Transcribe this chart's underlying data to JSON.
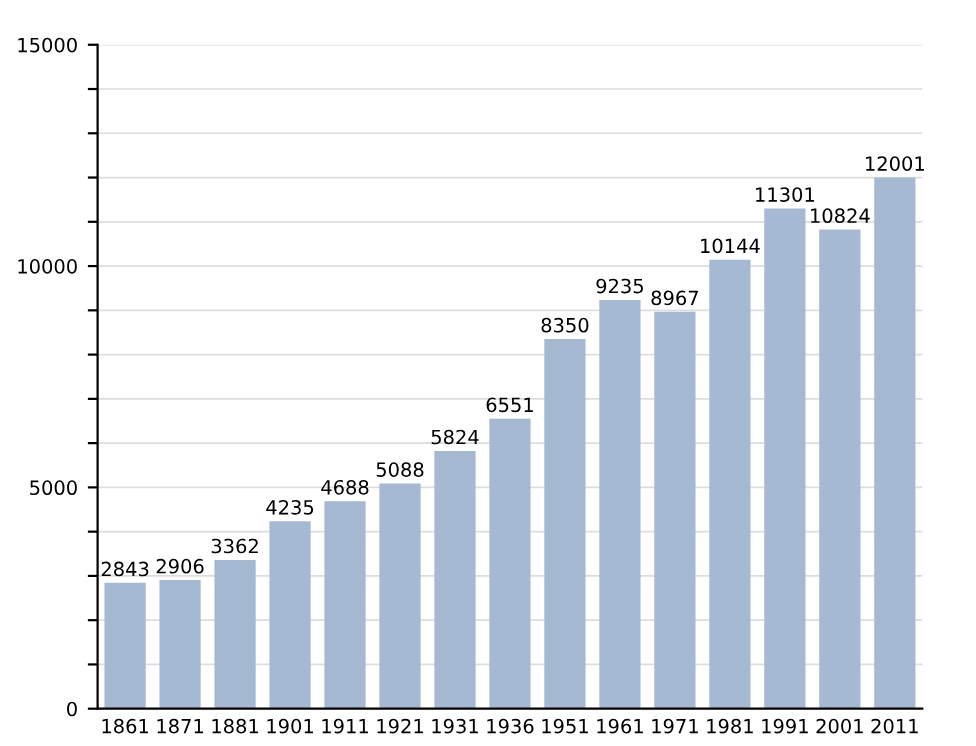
{
  "chart_data": {
    "type": "bar",
    "categories": [
      "1861",
      "1871",
      "1881",
      "1901",
      "1911",
      "1921",
      "1931",
      "1936",
      "1951",
      "1961",
      "1971",
      "1981",
      "1991",
      "2001",
      "2011"
    ],
    "values": [
      2843,
      2906,
      3362,
      4235,
      4688,
      5088,
      5824,
      6551,
      8350,
      9235,
      8967,
      10144,
      11301,
      10824,
      12001
    ],
    "color": "#a5b9d2",
    "ylim": [
      0,
      15000
    ],
    "yticks": [
      0,
      {
        "value": 1000,
        "label": null
      },
      {
        "value": 2000,
        "label": null
      },
      {
        "value": 3000,
        "label": null
      },
      {
        "value": 4000,
        "label": null
      },
      5000,
      {
        "value": 6000,
        "label": null
      },
      {
        "value": 7000,
        "label": null
      },
      {
        "value": 8000,
        "label": null
      },
      {
        "value": 9000,
        "label": null
      },
      10000,
      {
        "value": 11000,
        "label": null
      },
      {
        "value": 12000,
        "label": null
      },
      {
        "value": 13000,
        "label": null
      },
      {
        "value": 14000,
        "label": null
      },
      15000
    ],
    "grid": "y",
    "data_labels": true
  }
}
